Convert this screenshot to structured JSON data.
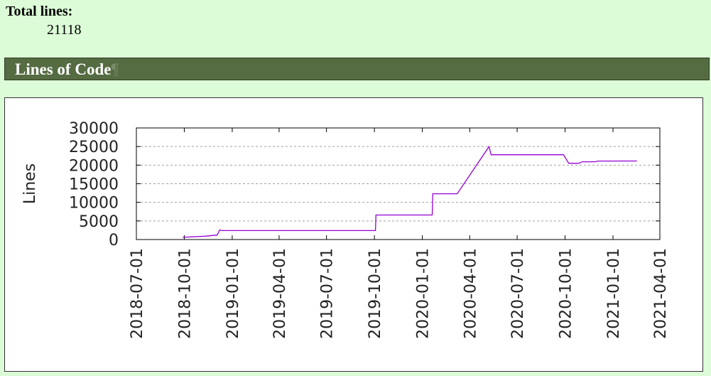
{
  "summary": {
    "total_lines_label": "Total lines:",
    "total_lines_value": "21118"
  },
  "section": {
    "title": "Lines of Code",
    "anchor": "¶"
  },
  "chart_data": {
    "type": "line",
    "ylabel": "Lines",
    "xlabel": "",
    "ylim": [
      0,
      30000
    ],
    "yticks": [
      0,
      5000,
      10000,
      15000,
      20000,
      25000,
      30000
    ],
    "xlim": [
      "2018-07-01",
      "2021-04-01"
    ],
    "xticks": [
      "2018-07-01",
      "2018-10-01",
      "2019-01-01",
      "2019-04-01",
      "2019-07-01",
      "2019-10-01",
      "2020-01-01",
      "2020-04-01",
      "2020-07-01",
      "2020-10-01",
      "2021-01-01",
      "2021-04-01"
    ],
    "grid": "horizontal dashed",
    "line_color": "#9400d3",
    "series": [
      {
        "points": [
          [
            "2018-09-28",
            600
          ],
          [
            "2018-11-10",
            900
          ],
          [
            "2018-12-03",
            1200
          ],
          [
            "2018-12-08",
            2600
          ],
          [
            "2018-12-12",
            2400
          ],
          [
            "2019-10-03",
            2400
          ],
          [
            "2019-10-04",
            6600
          ],
          [
            "2020-01-20",
            6600
          ],
          [
            "2020-01-21",
            12300
          ],
          [
            "2020-03-08",
            12300
          ],
          [
            "2020-05-08",
            25000
          ],
          [
            "2020-05-12",
            22800
          ],
          [
            "2020-09-28",
            22800
          ],
          [
            "2020-10-08",
            20500
          ],
          [
            "2020-10-28",
            20500
          ],
          [
            "2020-11-03",
            20900
          ],
          [
            "2020-11-28",
            20900
          ],
          [
            "2020-12-03",
            21100
          ],
          [
            "2021-02-16",
            21118
          ]
        ]
      }
    ]
  }
}
